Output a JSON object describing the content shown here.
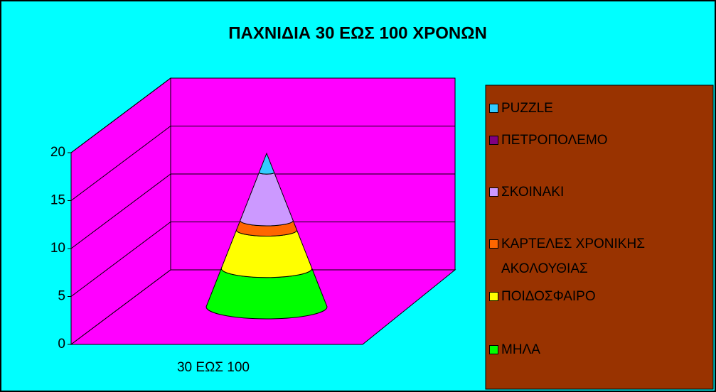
{
  "chart_data": {
    "type": "cone3d",
    "title": "ΠΑΧΝΙΔΙΑ 30 ΕΩΣ 100 ΧΡΟΝΩΝ",
    "categories": [
      "30 ΕΩΣ 100"
    ],
    "series": [
      {
        "name": "ΜΗΛΑ",
        "color": "#00ff00",
        "values": [
          4
        ]
      },
      {
        "name": "ΠΟΙΔΟΣΦΑΙΡΟ",
        "color": "#ffff00",
        "values": [
          4
        ]
      },
      {
        "name": "ΚΑΡΤΕΛΕΣ ΧΡΟΝΙΚΗΣ ΑΚΟΛΟΥΘΙΑΣ",
        "color": "#ff6600",
        "values": [
          1
        ]
      },
      {
        "name": "ΣΚΟΙΝΑΚΙ",
        "color": "#cc99ff",
        "values": [
          5
        ]
      },
      {
        "name": "ΠΕΤΡΟΠΟΛΕΜΟ",
        "color": "#800080",
        "values": [
          0
        ]
      },
      {
        "name": "PUZZLE",
        "color": "#33ccff",
        "values": [
          2
        ]
      }
    ],
    "ylim": [
      0,
      20
    ],
    "yticks": [
      0,
      5,
      10,
      15,
      20
    ],
    "grid": true,
    "legend": "right"
  }
}
